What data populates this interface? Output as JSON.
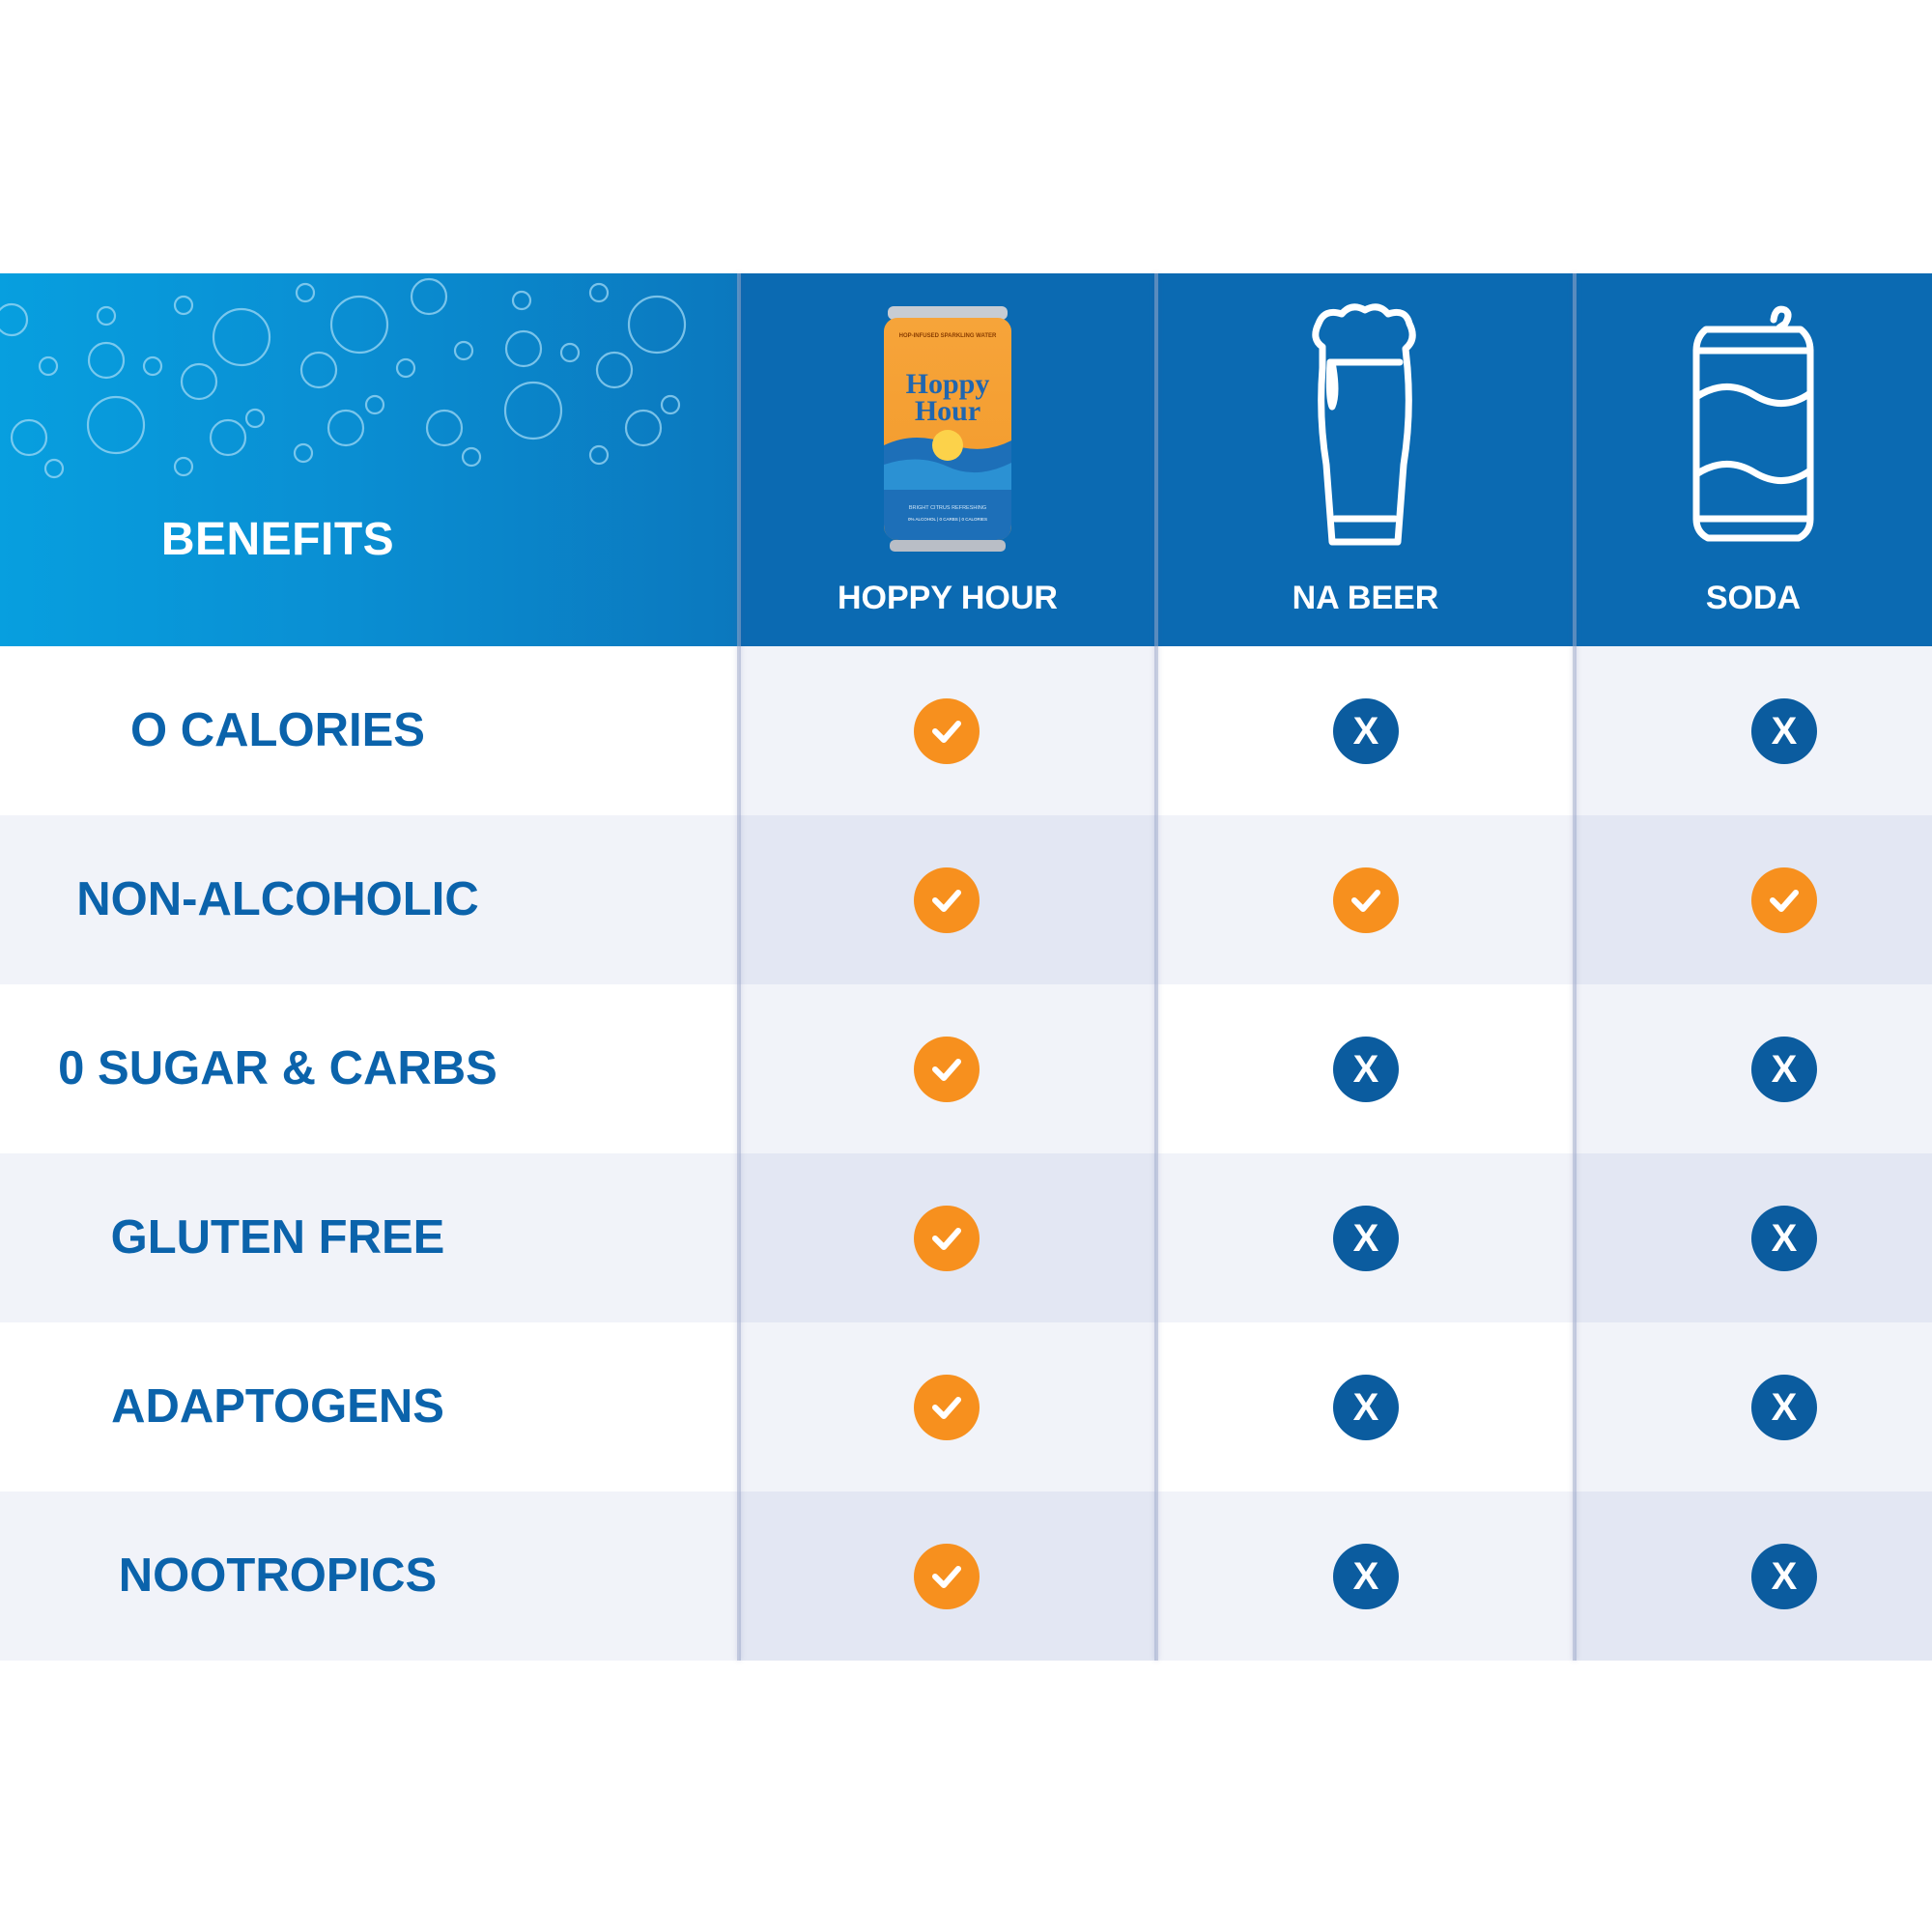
{
  "header": {
    "benefits_title": "BENEFITS",
    "columns": [
      {
        "label": "HOPPY HOUR",
        "icon": "hoppy-hour-can-icon"
      },
      {
        "label": "NA BEER",
        "icon": "beer-glass-icon"
      },
      {
        "label": "SODA",
        "icon": "soda-can-icon"
      }
    ]
  },
  "can_text": {
    "top": "HOP-INFUSED SPARKLING WATER",
    "brand_line1": "Hoppy",
    "brand_line2": "Hour",
    "bottom1": "BRIGHT CITRUS REFRESHING",
    "bottom2": "0% ALCOHOL | 0 CARBS | 0 CALORIES"
  },
  "rows": [
    {
      "label": "O CALORIES",
      "marks": [
        "check",
        "cross",
        "cross"
      ]
    },
    {
      "label": "NON-ALCOHOLIC",
      "marks": [
        "check",
        "check",
        "check"
      ]
    },
    {
      "label": "0 SUGAR & CARBS",
      "marks": [
        "check",
        "cross",
        "cross"
      ]
    },
    {
      "label": "GLUTEN FREE",
      "marks": [
        "check",
        "cross",
        "cross"
      ]
    },
    {
      "label": "ADAPTOGENS",
      "marks": [
        "check",
        "cross",
        "cross"
      ]
    },
    {
      "label": "NOOTROPICS",
      "marks": [
        "check",
        "cross",
        "cross"
      ]
    }
  ],
  "mark_glyphs": {
    "cross": "X"
  },
  "colors": {
    "check": "#f7901e",
    "cross": "#0b5c9f",
    "header_blue": "#0b6ab2",
    "label_blue": "#0b63ab"
  }
}
